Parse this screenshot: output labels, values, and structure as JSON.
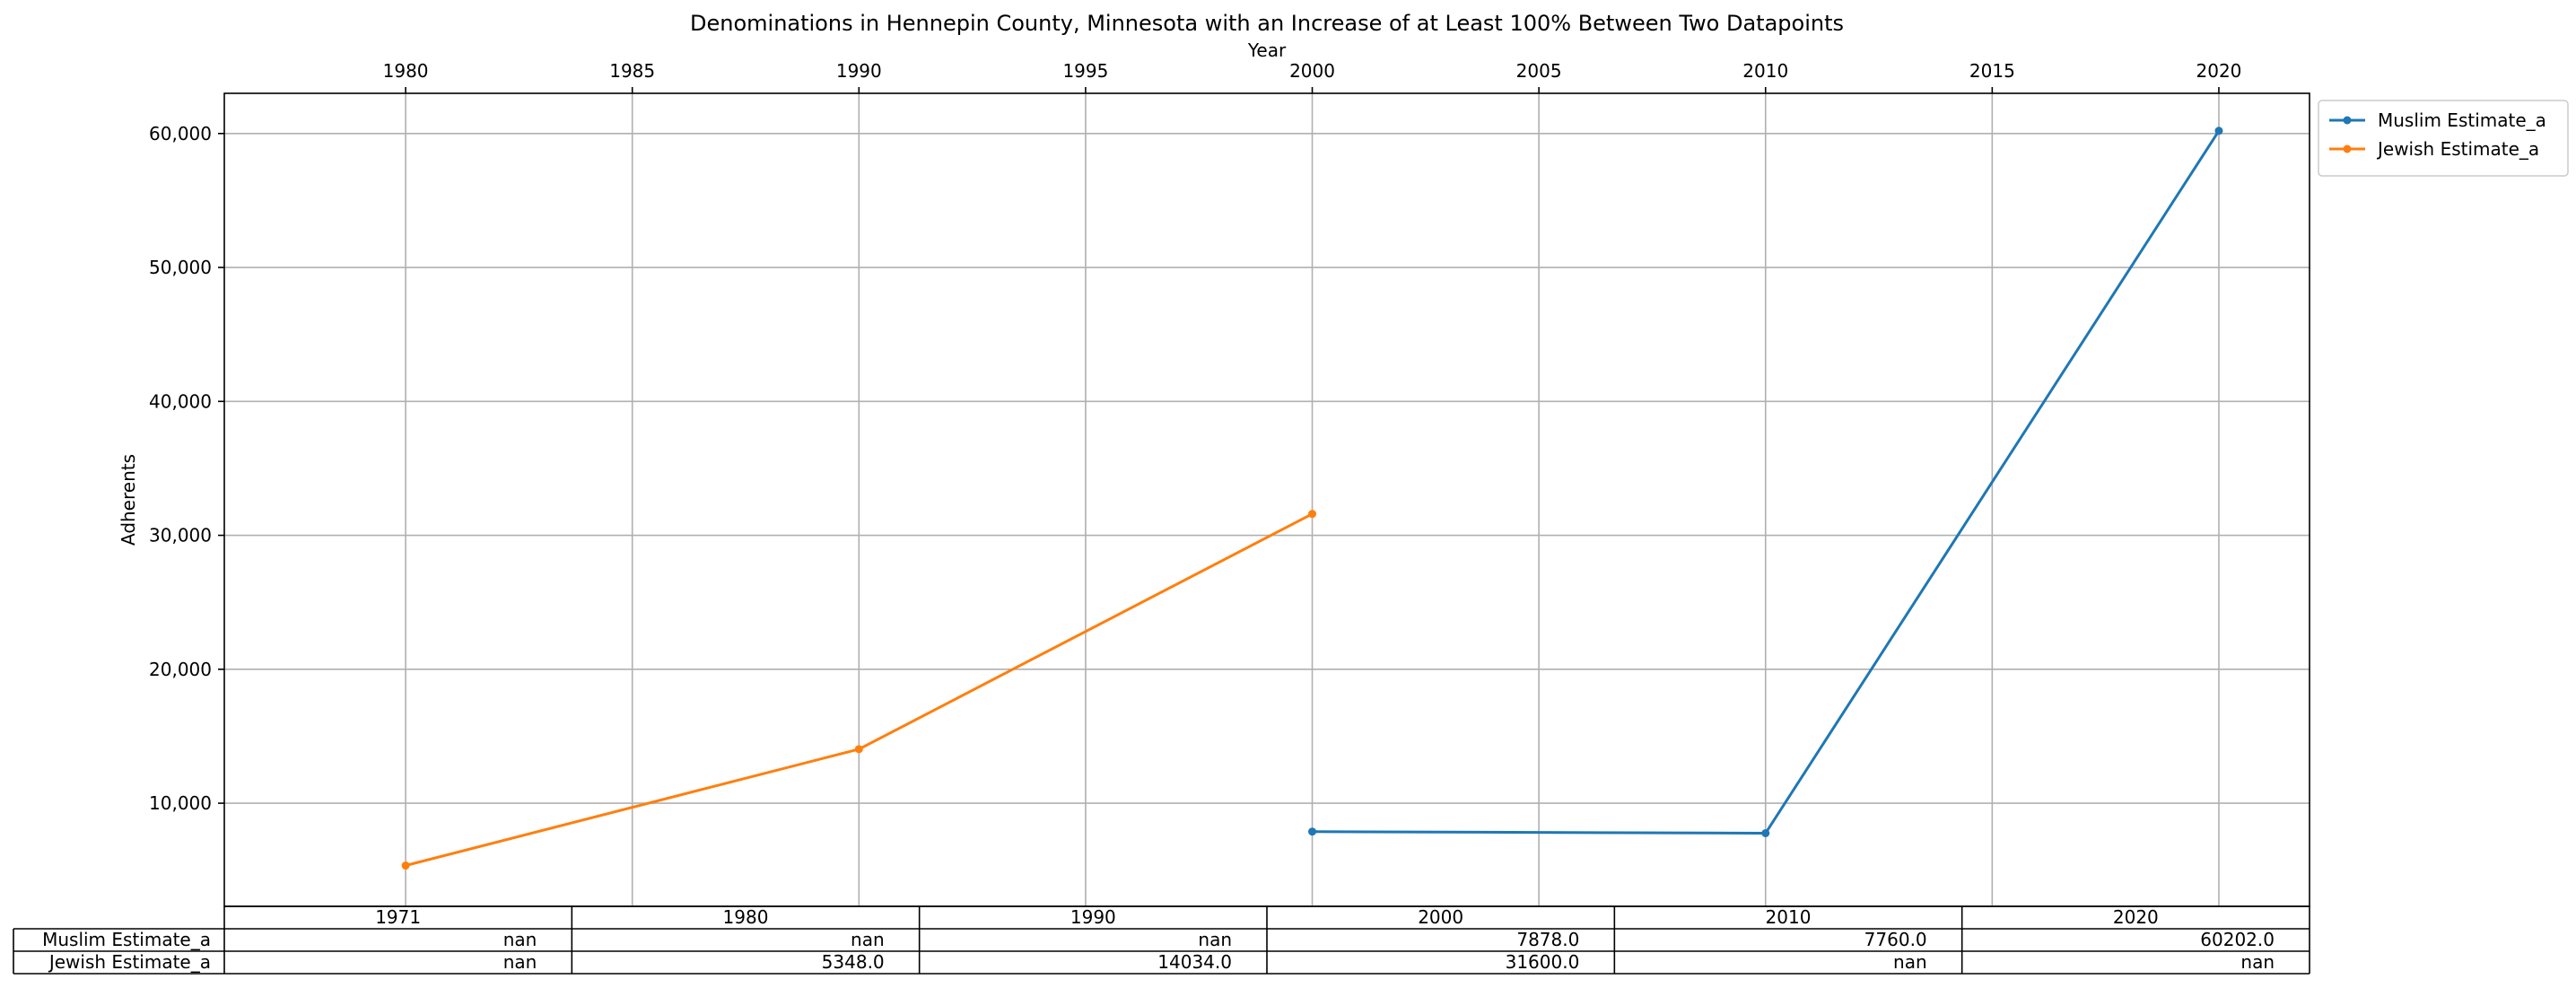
{
  "chart_data": {
    "type": "line",
    "title": "Denominations in Hennepin County, Minnesota with an Increase of at Least 100% Between Two Datapoints",
    "xlabel": "Year",
    "ylabel": "Adherents",
    "xlim": [
      1976,
      2022
    ],
    "ylim": [
      2300,
      63000
    ],
    "x_ticks": [
      "1980",
      "1985",
      "1990",
      "1995",
      "2000",
      "2005",
      "2010",
      "2015",
      "2020"
    ],
    "y_ticks": [
      "10,000",
      "20,000",
      "30,000",
      "40,000",
      "50,000",
      "60,000"
    ],
    "grid": true,
    "legend_position": "outside-top-right",
    "series": [
      {
        "name": "Muslim Estimate_a",
        "color": "#1f77b4",
        "x": [
          2000,
          2010,
          2020
        ],
        "y": [
          7878,
          7760,
          60202
        ]
      },
      {
        "name": "Jewish Estimate_a",
        "color": "#ff7f0e",
        "x": [
          1980,
          1990,
          2000
        ],
        "y": [
          5348,
          14034,
          31600
        ]
      }
    ],
    "table": {
      "columns": [
        "1971",
        "1980",
        "1990",
        "2000",
        "2010",
        "2020"
      ],
      "rows": [
        {
          "label": "Muslim Estimate_a",
          "cells": [
            "nan",
            "nan",
            "nan",
            "7878.0",
            "7760.0",
            "60202.0"
          ]
        },
        {
          "label": "Jewish Estimate_a",
          "cells": [
            "nan",
            "5348.0",
            "14034.0",
            "31600.0",
            "nan",
            "nan"
          ]
        }
      ]
    }
  }
}
